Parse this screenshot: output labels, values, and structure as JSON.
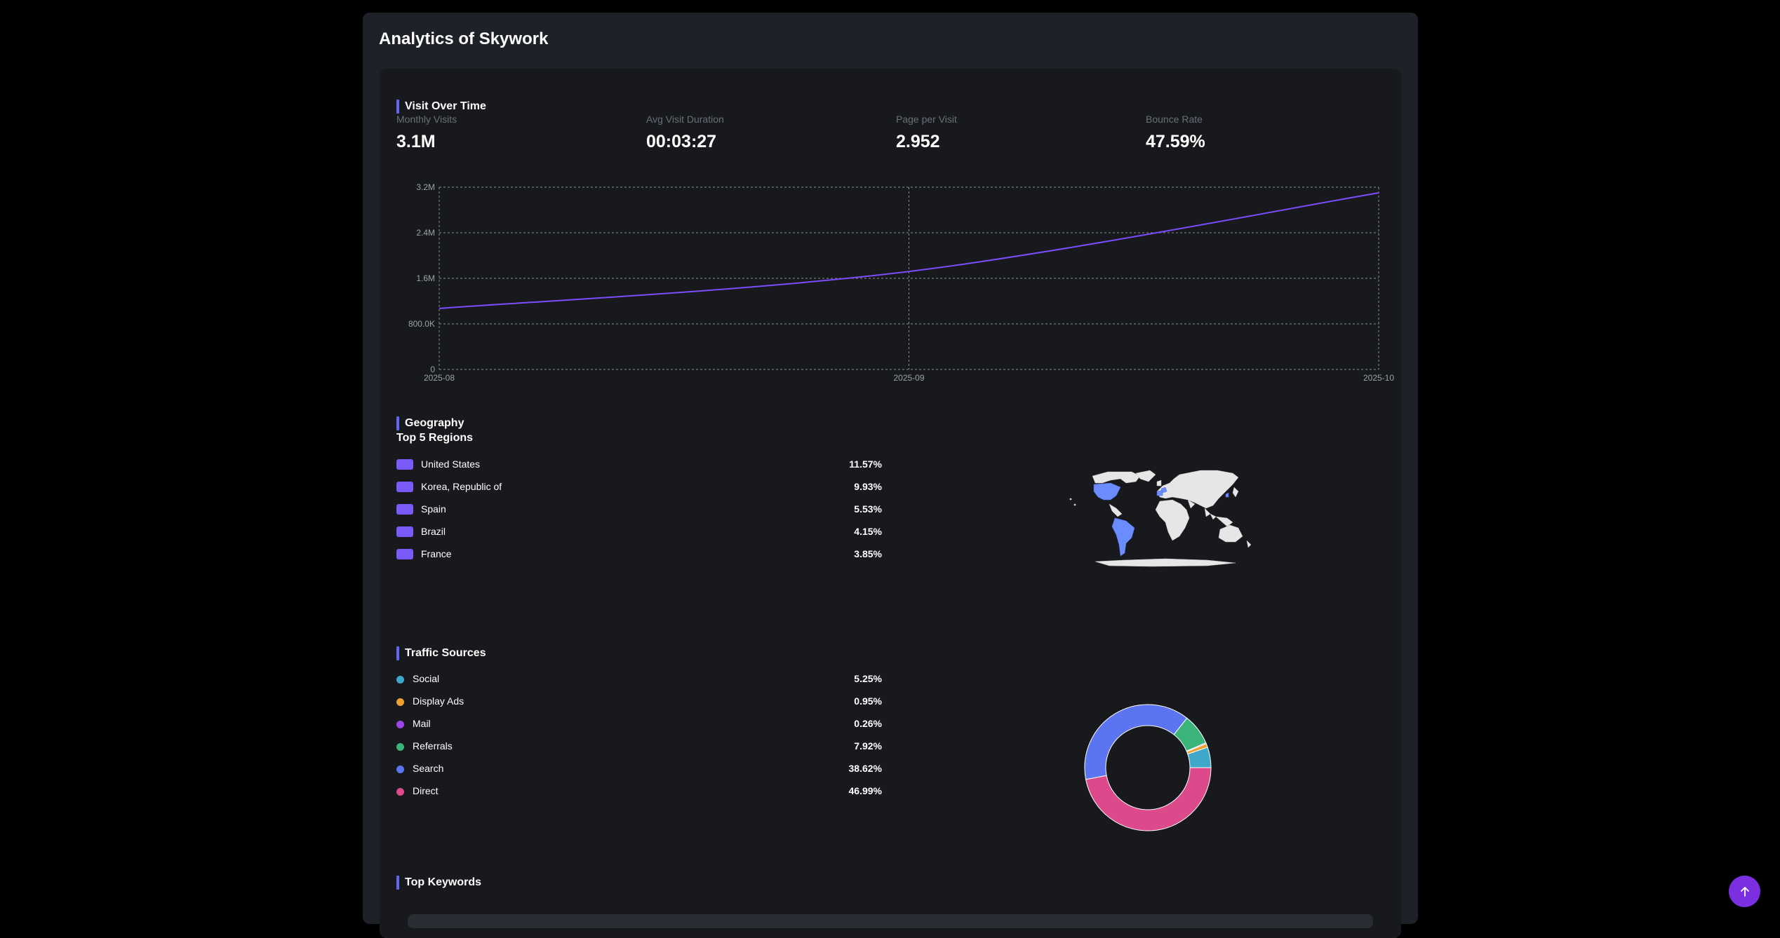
{
  "page": {
    "title": "Analytics of Skywork"
  },
  "visits": {
    "section_title": "Visit Over Time",
    "stats": [
      {
        "label": "Monthly Visits",
        "value": "3.1M"
      },
      {
        "label": "Avg Visit Duration",
        "value": "00:03:27"
      },
      {
        "label": "Page per Visit",
        "value": "2.952"
      },
      {
        "label": "Bounce Rate",
        "value": "47.59%"
      }
    ]
  },
  "chart_data": {
    "type": "line",
    "x": [
      "2025-08",
      "2025-09",
      "2025-10"
    ],
    "series": [
      {
        "values": [
          1070000,
          1720000,
          3100000
        ],
        "color": "#7c4dff"
      }
    ],
    "y_ticks": [
      "0",
      "800.0K",
      "1.6M",
      "2.4M",
      "3.2M"
    ],
    "ylim": [
      0,
      3200000
    ],
    "grid": true
  },
  "geography": {
    "section_title": "Geography",
    "subheading": "Top 5 Regions",
    "regions": [
      {
        "name": "United States",
        "value": "11.57%"
      },
      {
        "name": "Korea, Republic of",
        "value": "9.93%"
      },
      {
        "name": "Spain",
        "value": "5.53%"
      },
      {
        "name": "Brazil",
        "value": "4.15%"
      },
      {
        "name": "France",
        "value": "3.85%"
      }
    ],
    "swatch_color": "#7a5af8",
    "map_highlight_color": "#6b8cff",
    "map_land_color": "#e6e6e6"
  },
  "traffic": {
    "section_title": "Traffic Sources",
    "sources": [
      {
        "name": "Social",
        "value": "5.25%",
        "percent": 5.25,
        "color": "#3fa7c9"
      },
      {
        "name": "Display Ads",
        "value": "0.95%",
        "percent": 0.95,
        "color": "#f0a030"
      },
      {
        "name": "Mail",
        "value": "0.26%",
        "percent": 0.26,
        "color": "#9b46e8"
      },
      {
        "name": "Referrals",
        "value": "7.92%",
        "percent": 7.92,
        "color": "#3bb47a"
      },
      {
        "name": "Search",
        "value": "38.62%",
        "percent": 38.62,
        "color": "#5b74f0"
      },
      {
        "name": "Direct",
        "value": "46.99%",
        "percent": 46.99,
        "color": "#dc4a8c"
      }
    ]
  },
  "keywords": {
    "section_title": "Top Keywords"
  },
  "scroll_top": {
    "icon": "arrow-up-icon",
    "color": "#7c2fe0"
  }
}
